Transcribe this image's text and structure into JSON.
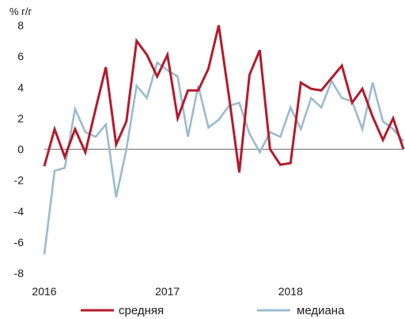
{
  "chart_data": {
    "type": "line",
    "unit_label": "% г/г",
    "ylim": [
      -8,
      8
    ],
    "y_ticks": [
      8,
      6,
      4,
      2,
      0,
      -2,
      -4,
      -6,
      -8
    ],
    "x_tick_labels": [
      "2016",
      "2017",
      "2018"
    ],
    "x": [
      "2016-01",
      "2016-02",
      "2016-03",
      "2016-04",
      "2016-05",
      "2016-06",
      "2016-07",
      "2016-08",
      "2016-09",
      "2016-10",
      "2016-11",
      "2016-12",
      "2017-01",
      "2017-02",
      "2017-03",
      "2017-04",
      "2017-05",
      "2017-06",
      "2017-07",
      "2017-08",
      "2017-09",
      "2017-10",
      "2017-11",
      "2017-12",
      "2018-01",
      "2018-02",
      "2018-03",
      "2018-04",
      "2018-05",
      "2018-06",
      "2018-07",
      "2018-08",
      "2018-09",
      "2018-10",
      "2018-11",
      "2018-12"
    ],
    "series": [
      {
        "name": "средняя",
        "color": "#b31b2c",
        "values": [
          -1.1,
          1.3,
          -0.5,
          1.3,
          -0.2,
          2.6,
          5.3,
          0.3,
          1.8,
          7.0,
          6.1,
          4.7,
          6.1,
          2.0,
          3.8,
          3.8,
          5.2,
          8.0,
          3.4,
          -1.5,
          4.8,
          6.4,
          0.0,
          -1.0,
          -0.9,
          4.3,
          3.9,
          3.8,
          4.6,
          5.4,
          3.0,
          3.9,
          2.1,
          0.6,
          2.0,
          0.0
        ]
      },
      {
        "name": "медиана",
        "color": "#9bbbcf",
        "values": [
          -6.8,
          -1.4,
          -1.2,
          2.6,
          1.1,
          0.8,
          1.6,
          -3.1,
          0.0,
          4.1,
          3.3,
          5.6,
          5.1,
          4.7,
          0.8,
          4.1,
          1.4,
          1.9,
          2.8,
          3.0,
          1.0,
          -0.2,
          1.1,
          0.8,
          2.7,
          1.3,
          3.3,
          2.7,
          4.4,
          3.3,
          3.1,
          1.3,
          4.3,
          1.8,
          1.3,
          0.5
        ]
      }
    ],
    "legend_position": "bottom",
    "grid": false
  }
}
